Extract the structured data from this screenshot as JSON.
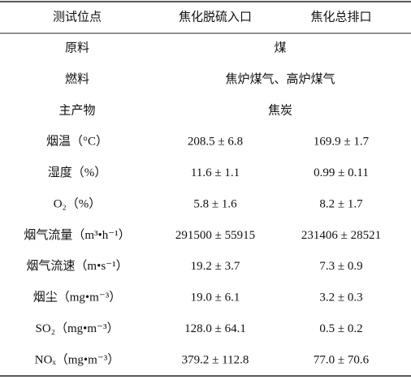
{
  "table": {
    "header": [
      "测试位点",
      "焦化脱硫入口",
      "焦化总排口"
    ],
    "rows": [
      [
        "原料",
        "煤"
      ],
      [
        "燃料",
        "焦炉煤气、高炉煤气"
      ],
      [
        "主产物",
        "焦炭"
      ],
      [
        "烟温（°C）",
        "208.5 ± 6.8",
        "169.9 ± 1.7"
      ],
      [
        "湿度（%）",
        "11.6 ± 1.1",
        "0.99 ± 0.11"
      ],
      [
        "O₂（%）",
        "5.8 ± 1.6",
        "8.2 ± 1.7"
      ],
      [
        "烟气流量（m³•h⁻¹）",
        "291500 ± 55915",
        "231406 ± 28521"
      ],
      [
        "烟气流速（m•s⁻¹）",
        "19.2 ± 3.7",
        "7.3 ± 0.9"
      ],
      [
        "烟尘（mg•m⁻³）",
        "19.0 ± 6.1",
        "3.2 ± 0.3"
      ],
      [
        "SO₂（mg•m⁻³）",
        "128.0 ± 64.1",
        "0.5 ± 0.2"
      ],
      [
        "NOₓ（mg•m⁻³）",
        "379.2 ± 112.8",
        "77.0 ± 70.6"
      ]
    ]
  }
}
